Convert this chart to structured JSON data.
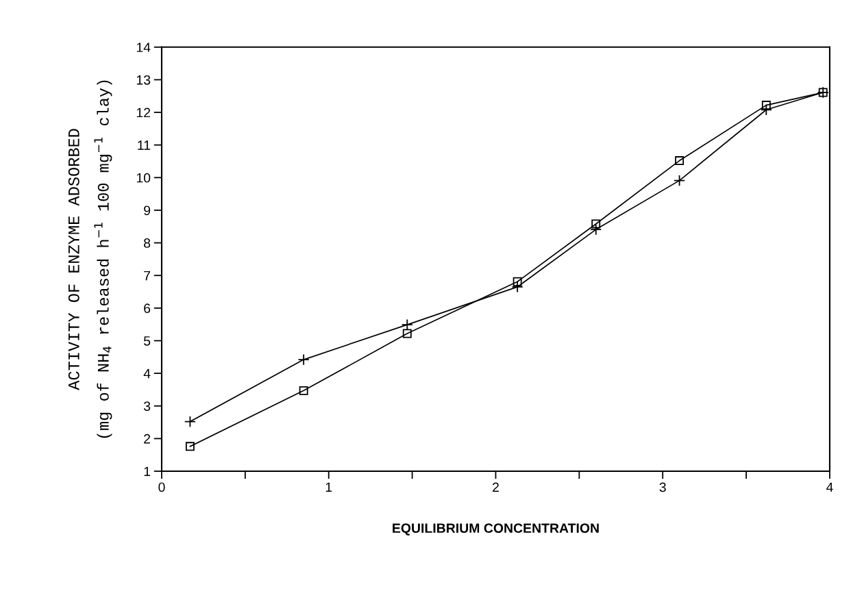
{
  "chart_data": {
    "type": "line",
    "xlabel": "EQUILIBRIUM CONCENTRATION",
    "ylabel": "ACTIVITY OF ENZYME ADSORBED\n(mg of NH$_{4}$ released h$^{−1}$ 100 mg$^{−1}$ clay)",
    "x": [
      0.17,
      0.85,
      1.47,
      2.13,
      2.6,
      3.1,
      3.62,
      3.96
    ],
    "series": [
      {
        "color": "#000000",
        "marker": "square",
        "values": [
          1.76,
          3.47,
          5.22,
          6.81,
          8.58,
          10.52,
          12.22,
          12.61
        ]
      },
      {
        "color": "#000000",
        "marker": "cross",
        "values": [
          2.52,
          4.42,
          5.49,
          6.65,
          8.41,
          9.91,
          12.08,
          12.61
        ]
      }
    ],
    "xlim": [
      0,
      4
    ],
    "xticks": [
      0,
      {
        "value": 0.5,
        "label": null
      },
      1,
      {
        "value": 1.5,
        "label": null
      },
      2,
      {
        "value": 2.5,
        "label": null
      },
      3,
      {
        "value": 3.5,
        "label": null
      },
      4
    ],
    "ylim": [
      1,
      14
    ],
    "yticks": [
      1,
      2,
      3,
      4,
      5,
      6,
      7,
      8,
      9,
      10,
      11,
      12,
      13,
      14
    ],
    "line_style": "solid",
    "grid": false,
    "legend": false
  }
}
